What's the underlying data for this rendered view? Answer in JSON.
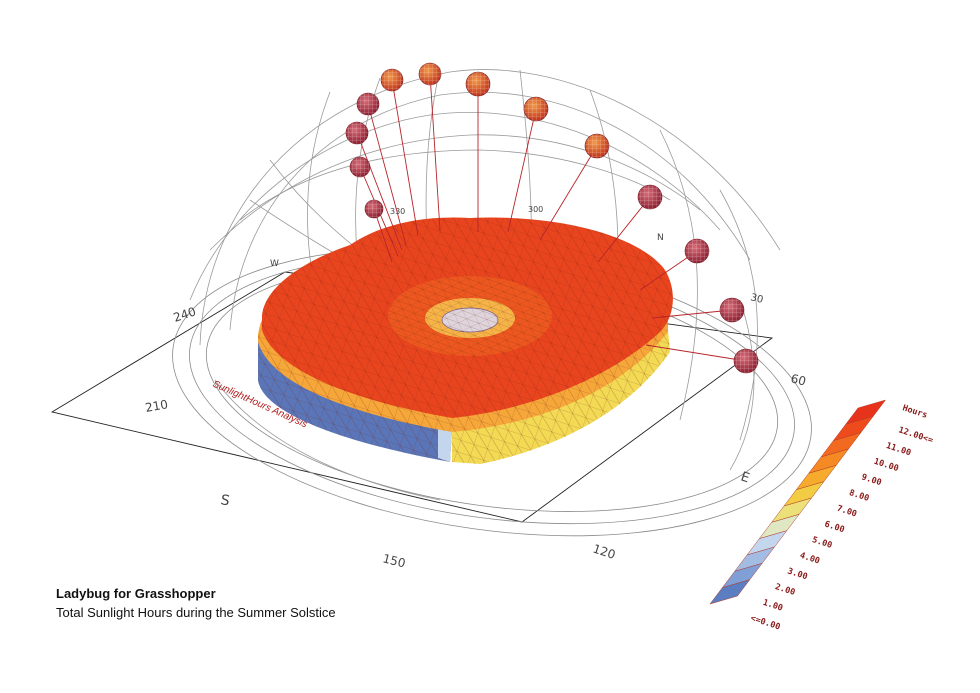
{
  "caption": {
    "title": "Ladybug for Grasshopper",
    "subtitle": "Total Sunlight Hours during the Summer Solstice"
  },
  "analysis_label": "SunlightHours Analysis",
  "compass": {
    "degree_labels": [
      "240",
      "210",
      "150",
      "120",
      "60",
      "30",
      "330",
      "300"
    ],
    "direction_labels": [
      "S",
      "E",
      "N",
      "W"
    ]
  },
  "legend": {
    "title": "Hours",
    "labels": [
      "12.00<=",
      "11.00",
      "10.00",
      "9.00",
      "8.00",
      "7.00",
      "6.00",
      "5.00",
      "4.00",
      "3.00",
      "2.00",
      "1.00",
      "<=0.00"
    ],
    "colors": [
      "#e8331c",
      "#ee4b1c",
      "#f26a20",
      "#f58a24",
      "#f7ab2c",
      "#f2cd44",
      "#ece078",
      "#dfe7c3",
      "#c4d6ee",
      "#a2bce4",
      "#7f9fd6",
      "#5b7ec2"
    ]
  },
  "colors": {
    "roof": "#e8451f",
    "band_orange": "#f6a73a",
    "band_yellow": "#f2da55",
    "shade_blue": "#5a76b8",
    "sun_dark": "#b8343f",
    "sun_light": "#e8642a",
    "ray": "#b8242a",
    "grid": "#9a9a9a"
  }
}
